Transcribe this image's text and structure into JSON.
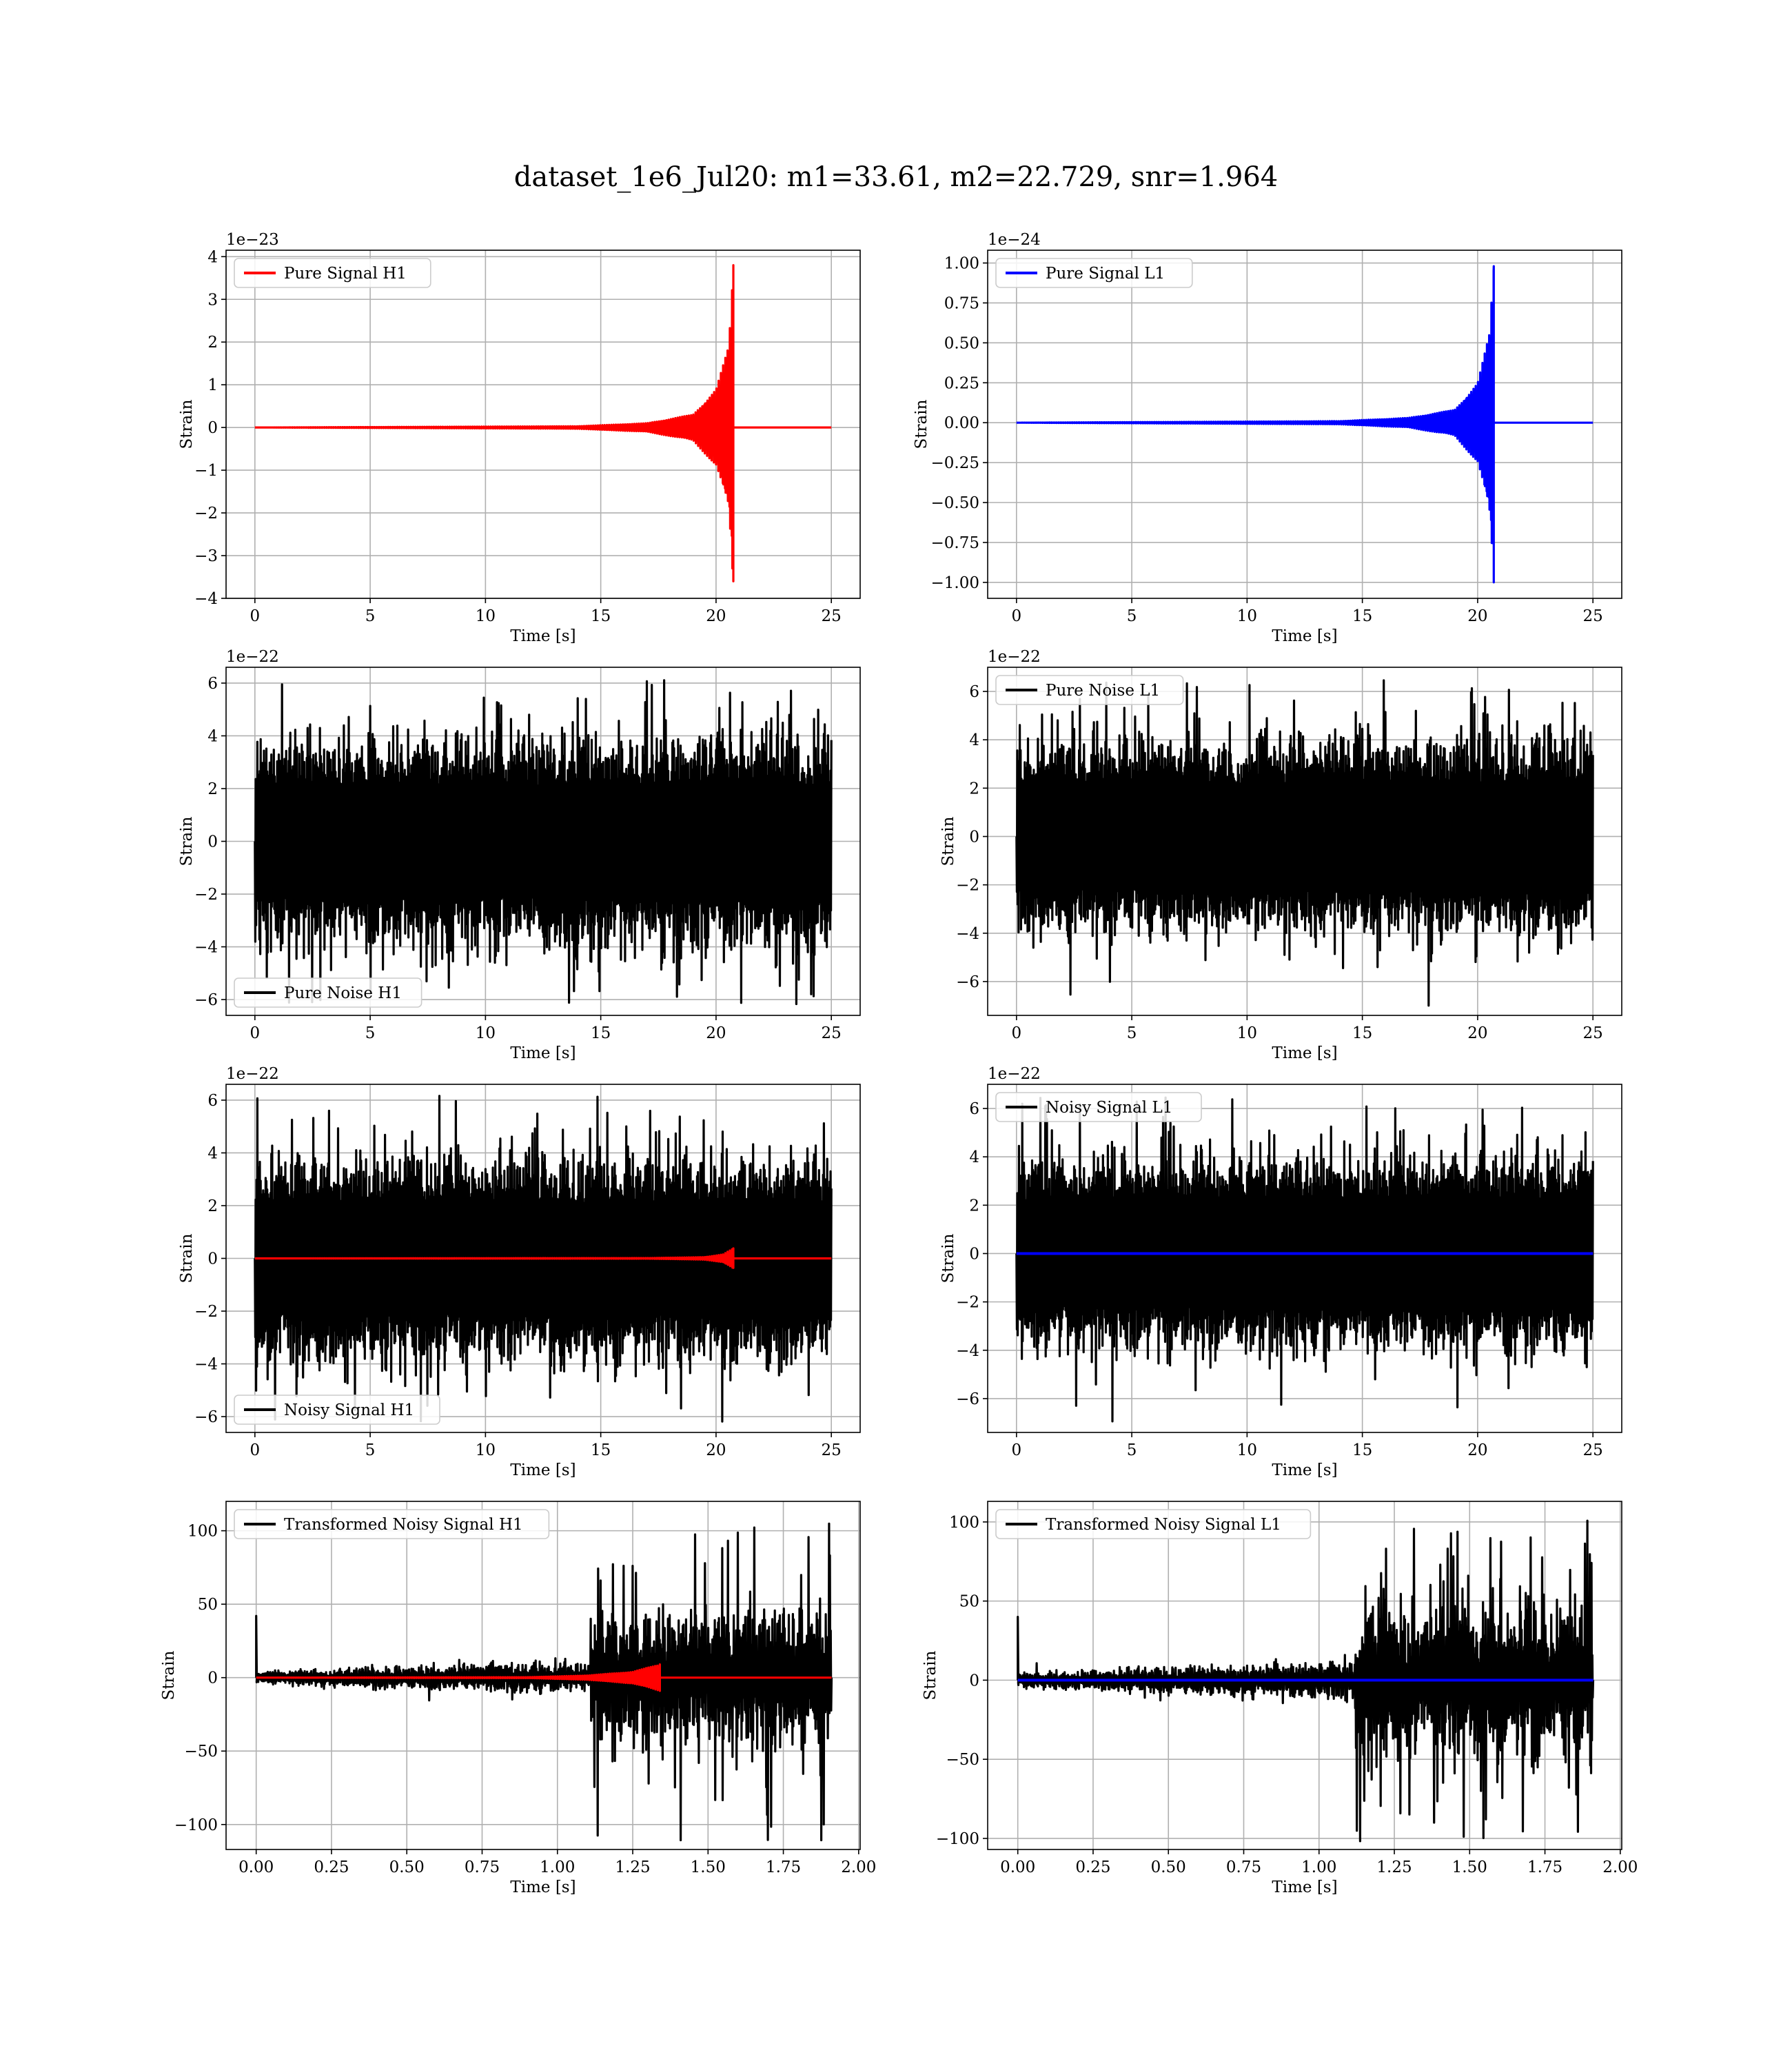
{
  "figure": {
    "title": "dataset_1e6_Jul20: m1=33.61, m2=22.729, snr=1.964"
  },
  "chart_data": [
    {
      "type": "line",
      "panel": "top-left",
      "xlabel": "Time [s]",
      "ylabel": "Strain",
      "offset_text": "1e−23",
      "xlim": [
        -1.25,
        26.25
      ],
      "ylim": [
        -4.0,
        4.15
      ],
      "xticks": [
        0,
        5,
        10,
        15,
        20,
        25
      ],
      "xtick_labels": [
        "0",
        "5",
        "10",
        "15",
        "20",
        "25"
      ],
      "yticks": [
        4,
        3,
        2,
        1,
        0,
        -1,
        -2,
        -3,
        -4
      ],
      "ytick_labels": [
        "4",
        "3",
        "2",
        "1",
        "0",
        "−1",
        "−2",
        "−3",
        "−4"
      ],
      "grid": true,
      "legend_loc": "upper left",
      "series": [
        {
          "name": "Pure Signal H1",
          "color": "#ff0000",
          "kind": "chirp",
          "t_end": 25,
          "t_merger": 20.75,
          "peak": 3.8,
          "trough": -3.6,
          "envelope": [
            [
              0,
              0
            ],
            [
              14,
              0.03
            ],
            [
              17,
              0.1
            ],
            [
              19,
              0.3
            ],
            [
              20,
              0.9
            ],
            [
              20.55,
              1.9
            ],
            [
              20.75,
              3.8
            ]
          ]
        }
      ]
    },
    {
      "type": "line",
      "panel": "top-right",
      "xlabel": "Time [s]",
      "ylabel": "Strain",
      "offset_text": "1e−24",
      "xlim": [
        -1.25,
        26.25
      ],
      "ylim": [
        -1.1,
        1.08
      ],
      "xticks": [
        0,
        5,
        10,
        15,
        20,
        25
      ],
      "xtick_labels": [
        "0",
        "5",
        "10",
        "15",
        "20",
        "25"
      ],
      "yticks": [
        1.0,
        0.75,
        0.5,
        0.25,
        0.0,
        -0.25,
        -0.5,
        -0.75,
        -1.0
      ],
      "ytick_labels": [
        "1.00",
        "0.75",
        "0.50",
        "0.25",
        "0.00",
        "−0.25",
        "−0.50",
        "−0.75",
        "−1.00"
      ],
      "grid": true,
      "legend_loc": "upper left",
      "series": [
        {
          "name": "Pure Signal L1",
          "color": "#0000ff",
          "kind": "chirp",
          "t_end": 25,
          "t_merger": 20.7,
          "peak": 0.98,
          "trough": -1.0,
          "envelope": [
            [
              0,
              0
            ],
            [
              14,
              0.01
            ],
            [
              17,
              0.03
            ],
            [
              19,
              0.08
            ],
            [
              20,
              0.25
            ],
            [
              20.5,
              0.55
            ],
            [
              20.7,
              0.98
            ]
          ]
        }
      ]
    },
    {
      "type": "line",
      "panel": "row2-left",
      "xlabel": "Time [s]",
      "ylabel": "Strain",
      "offset_text": "1e−22",
      "xlim": [
        -1.25,
        26.25
      ],
      "ylim": [
        -6.6,
        6.6
      ],
      "xticks": [
        0,
        5,
        10,
        15,
        20,
        25
      ],
      "xtick_labels": [
        "0",
        "5",
        "10",
        "15",
        "20",
        "25"
      ],
      "yticks": [
        6,
        4,
        2,
        0,
        -2,
        -4,
        -6
      ],
      "ytick_labels": [
        "6",
        "4",
        "2",
        "0",
        "−2",
        "−4",
        "−6"
      ],
      "grid": true,
      "legend_loc": "lower left",
      "series": [
        {
          "name": "Pure Noise H1",
          "color": "#000000",
          "kind": "noise",
          "t_end": 25,
          "band": 3.8,
          "spike_max": 6.3,
          "spike_min": -6.3
        }
      ]
    },
    {
      "type": "line",
      "panel": "row2-right",
      "xlabel": "Time [s]",
      "ylabel": "Strain",
      "offset_text": "1e−22",
      "xlim": [
        -1.25,
        26.25
      ],
      "ylim": [
        -7.4,
        7.0
      ],
      "xticks": [
        0,
        5,
        10,
        15,
        20,
        25
      ],
      "xtick_labels": [
        "0",
        "5",
        "10",
        "15",
        "20",
        "25"
      ],
      "yticks": [
        6,
        4,
        2,
        0,
        -2,
        -4,
        -6
      ],
      "ytick_labels": [
        "6",
        "4",
        "2",
        "0",
        "−2",
        "−4",
        "−6"
      ],
      "grid": true,
      "legend_loc": "upper left",
      "series": [
        {
          "name": "Pure Noise L1",
          "color": "#000000",
          "kind": "noise",
          "t_end": 25,
          "band": 3.9,
          "spike_max": 6.5,
          "spike_min": -7.0
        }
      ]
    },
    {
      "type": "line",
      "panel": "row3-left",
      "xlabel": "Time [s]",
      "ylabel": "Strain",
      "offset_text": "1e−22",
      "xlim": [
        -1.25,
        26.25
      ],
      "ylim": [
        -6.6,
        6.6
      ],
      "xticks": [
        0,
        5,
        10,
        15,
        20,
        25
      ],
      "xtick_labels": [
        "0",
        "5",
        "10",
        "15",
        "20",
        "25"
      ],
      "yticks": [
        6,
        4,
        2,
        0,
        -2,
        -4,
        -6
      ],
      "ytick_labels": [
        "6",
        "4",
        "2",
        "0",
        "−2",
        "−4",
        "−6"
      ],
      "grid": true,
      "legend_loc": "lower left",
      "series": [
        {
          "name": "Noisy Signal H1",
          "color": "#000000",
          "kind": "noise",
          "t_end": 25,
          "band": 3.8,
          "spike_max": 6.3,
          "spike_min": -6.3
        },
        {
          "name": "",
          "color": "#ff0000",
          "kind": "chirp",
          "t_end": 25,
          "t_merger": 20.75,
          "peak": 0.38,
          "trough": -0.36,
          "envelope": [
            [
              0,
              0
            ],
            [
              17,
              0.01
            ],
            [
              19.5,
              0.05
            ],
            [
              20.3,
              0.15
            ],
            [
              20.75,
              0.38
            ]
          ]
        }
      ]
    },
    {
      "type": "line",
      "panel": "row3-right",
      "xlabel": "Time [s]",
      "ylabel": "Strain",
      "offset_text": "1e−22",
      "xlim": [
        -1.25,
        26.25
      ],
      "ylim": [
        -7.4,
        7.0
      ],
      "xticks": [
        0,
        5,
        10,
        15,
        20,
        25
      ],
      "xtick_labels": [
        "0",
        "5",
        "10",
        "15",
        "20",
        "25"
      ],
      "yticks": [
        6,
        4,
        2,
        0,
        -2,
        -4,
        -6
      ],
      "ytick_labels": [
        "6",
        "4",
        "2",
        "0",
        "−2",
        "−4",
        "−6"
      ],
      "grid": true,
      "legend_loc": "upper left",
      "series": [
        {
          "name": "Noisy Signal L1",
          "color": "#000000",
          "kind": "noise",
          "t_end": 25,
          "band": 3.9,
          "spike_max": 6.5,
          "spike_min": -7.0
        },
        {
          "name": "",
          "color": "#0000ff",
          "kind": "flat",
          "t_end": 25,
          "value": 0
        }
      ]
    },
    {
      "type": "line",
      "panel": "bottom-left",
      "xlabel": "Time [s]",
      "ylabel": "Strain",
      "offset_text": "",
      "xlim": [
        -0.1,
        2.005
      ],
      "ylim": [
        -117,
        120
      ],
      "xticks": [
        0.0,
        0.25,
        0.5,
        0.75,
        1.0,
        1.25,
        1.5,
        1.75,
        2.0
      ],
      "xtick_labels": [
        "0.00",
        "0.25",
        "0.50",
        "0.75",
        "1.00",
        "1.25",
        "1.50",
        "1.75",
        "2.00"
      ],
      "yticks": [
        100,
        50,
        0,
        -50,
        -100
      ],
      "ytick_labels": [
        "100",
        "50",
        "0",
        "−50",
        "−100"
      ],
      "grid": true,
      "legend_loc": "upper left",
      "series": [
        {
          "name": "Transformed Noisy Signal H1",
          "color": "#000000",
          "kind": "transformed",
          "t_end": 1.91,
          "t_step": 1.11,
          "low_band": 8,
          "high_band": 45,
          "spike_max": 108,
          "spike_min": -112,
          "start_spike": 42
        },
        {
          "name": "",
          "color": "#ff0000",
          "kind": "chirp",
          "t_end": 1.91,
          "t_merger": 1.34,
          "t_cut": 1.34,
          "peak": 9,
          "trough": -9,
          "envelope": [
            [
              0,
              0
            ],
            [
              0.9,
              0.3
            ],
            [
              1.1,
              1.5
            ],
            [
              1.25,
              4
            ],
            [
              1.34,
              9
            ]
          ]
        }
      ]
    },
    {
      "type": "line",
      "panel": "bottom-right",
      "xlabel": "Time [s]",
      "ylabel": "Strain",
      "offset_text": "",
      "xlim": [
        -0.1,
        2.005
      ],
      "ylim": [
        -107,
        113
      ],
      "xticks": [
        0.0,
        0.25,
        0.5,
        0.75,
        1.0,
        1.25,
        1.5,
        1.75,
        2.0
      ],
      "xtick_labels": [
        "0.00",
        "0.25",
        "0.50",
        "0.75",
        "1.00",
        "1.25",
        "1.50",
        "1.75",
        "2.00"
      ],
      "yticks": [
        100,
        50,
        0,
        -50,
        -100
      ],
      "ytick_labels": [
        "100",
        "50",
        "0",
        "−50",
        "−100"
      ],
      "grid": true,
      "legend_loc": "upper left",
      "series": [
        {
          "name": "Transformed Noisy Signal L1",
          "color": "#000000",
          "kind": "transformed",
          "t_end": 1.91,
          "t_step": 1.12,
          "low_band": 9,
          "high_band": 48,
          "spike_max": 106,
          "spike_min": -102,
          "start_spike": 40
        },
        {
          "name": "",
          "color": "#0000ff",
          "kind": "flat",
          "t_end": 1.91,
          "value": 0
        }
      ]
    }
  ]
}
